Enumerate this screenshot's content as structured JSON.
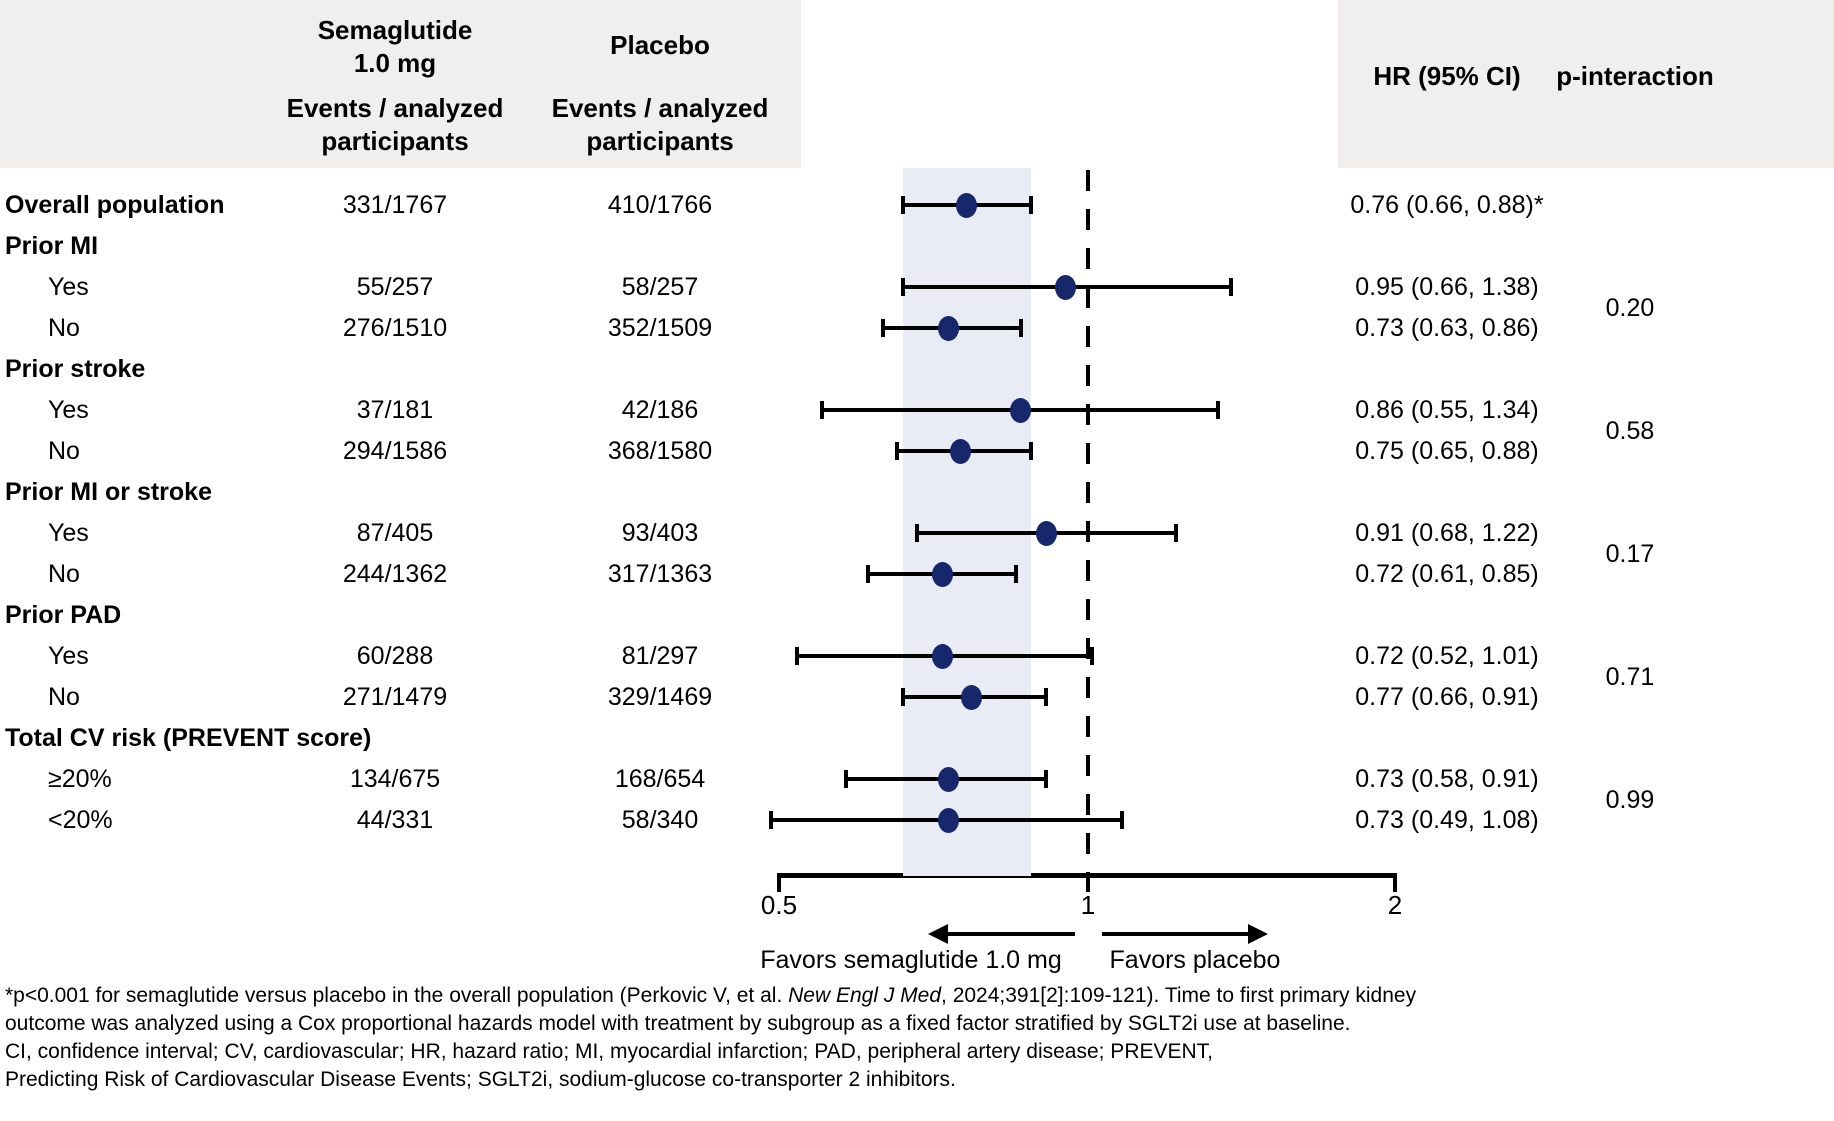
{
  "header": {
    "sema_line1": "Semaglutide",
    "sema_line2": "1.0 mg",
    "placebo": "Placebo",
    "events_line1": "Events / analyzed",
    "events_line2": "participants",
    "hr": "HR (95% CI)",
    "p": "p-interaction"
  },
  "axis": {
    "tick_labels": [
      "0.5",
      "1",
      "2"
    ],
    "favors_left": "Favors semaglutide 1.0 mg",
    "favors_right": "Favors placebo"
  },
  "footnote": {
    "line1_pre": "*p<0.001 for semaglutide versus placebo in the overall population (Perkovic V, et al. ",
    "line1_italic": "New Engl J Med",
    "line1_post": ", 2024;391[2]:109-121).  Time to first primary kidney",
    "line2": "outcome was analyzed using a Cox proportional hazards model with treatment by subgroup as a fixed factor stratified by SGLT2i use at baseline.",
    "line3": "CI, confidence interval; CV, cardiovascular; HR, hazard ratio; MI, myocardial infarction; PAD, peripheral artery disease; PREVENT,",
    "line4": "Predicting Risk of Cardiovascular Disease Events; SGLT2i, sodium-glucose co-transporter 2 inhibitors."
  },
  "colors": {
    "marker": "#17276c",
    "band": "#e9ecf4",
    "header_bg": "#f0efed",
    "line": "#000000"
  },
  "chart_data": {
    "type": "forest",
    "subtype": "hazard-ratio forest plot with 95% CI whiskers",
    "x_axis": {
      "scale": "log",
      "ticks": [
        0.5,
        1,
        2
      ],
      "range": [
        0.5,
        2
      ],
      "reference_line": 1.0
    },
    "shaded_band_ci": [
      0.66,
      0.88
    ],
    "legend": {
      "favors_left": "Favors semaglutide 1.0 mg",
      "favors_right": "Favors placebo"
    },
    "rows": [
      {
        "label": "Overall population",
        "style": "group",
        "sema": "331/1767",
        "placebo": "410/1766",
        "hr": 0.76,
        "lo": 0.66,
        "hi": 0.88,
        "hr_text": "0.76 (0.66, 0.88)*"
      },
      {
        "label": "Prior MI",
        "style": "group",
        "sema": null,
        "placebo": null,
        "hr": null,
        "lo": null,
        "hi": null,
        "hr_text": null
      },
      {
        "label": "Yes",
        "style": "sub",
        "sema": "55/257",
        "placebo": "58/257",
        "hr": 0.95,
        "lo": 0.66,
        "hi": 1.38,
        "hr_text": "0.95 (0.66, 1.38)"
      },
      {
        "label": "No",
        "style": "sub",
        "sema": "276/1510",
        "placebo": "352/1509",
        "hr": 0.73,
        "lo": 0.63,
        "hi": 0.86,
        "hr_text": "0.73 (0.63, 0.86)"
      },
      {
        "label": "Prior stroke",
        "style": "group",
        "sema": null,
        "placebo": null,
        "hr": null,
        "lo": null,
        "hi": null,
        "hr_text": null
      },
      {
        "label": "Yes",
        "style": "sub",
        "sema": "37/181",
        "placebo": "42/186",
        "hr": 0.86,
        "lo": 0.55,
        "hi": 1.34,
        "hr_text": "0.86 (0.55, 1.34)"
      },
      {
        "label": "No",
        "style": "sub",
        "sema": "294/1586",
        "placebo": "368/1580",
        "hr": 0.75,
        "lo": 0.65,
        "hi": 0.88,
        "hr_text": "0.75 (0.65, 0.88)"
      },
      {
        "label": "Prior MI or stroke",
        "style": "group",
        "sema": null,
        "placebo": null,
        "hr": null,
        "lo": null,
        "hi": null,
        "hr_text": null
      },
      {
        "label": "Yes",
        "style": "sub",
        "sema": "87/405",
        "placebo": "93/403",
        "hr": 0.91,
        "lo": 0.68,
        "hi": 1.22,
        "hr_text": "0.91 (0.68, 1.22)"
      },
      {
        "label": "No",
        "style": "sub",
        "sema": "244/1362",
        "placebo": "317/1363",
        "hr": 0.72,
        "lo": 0.61,
        "hi": 0.85,
        "hr_text": "0.72 (0.61, 0.85)"
      },
      {
        "label": "Prior PAD",
        "style": "group",
        "sema": null,
        "placebo": null,
        "hr": null,
        "lo": null,
        "hi": null,
        "hr_text": null
      },
      {
        "label": "Yes",
        "style": "sub",
        "sema": "60/288",
        "placebo": "81/297",
        "hr": 0.72,
        "lo": 0.52,
        "hi": 1.01,
        "hr_text": "0.72 (0.52, 1.01)"
      },
      {
        "label": "No",
        "style": "sub",
        "sema": "271/1479",
        "placebo": "329/1469",
        "hr": 0.77,
        "lo": 0.66,
        "hi": 0.91,
        "hr_text": "0.77 (0.66, 0.91)"
      },
      {
        "label": "Total CV risk (PREVENT score)",
        "style": "group",
        "sema": null,
        "placebo": null,
        "hr": null,
        "lo": null,
        "hi": null,
        "hr_text": null
      },
      {
        "label": "≥20%",
        "style": "sub",
        "sema": "134/675",
        "placebo": "168/654",
        "hr": 0.73,
        "lo": 0.58,
        "hi": 0.91,
        "hr_text": "0.73 (0.58, 0.91)"
      },
      {
        "label": "<20%",
        "style": "sub",
        "sema": "44/331",
        "placebo": "58/340",
        "hr": 0.73,
        "lo": 0.49,
        "hi": 1.08,
        "hr_text": "0.73 (0.49, 1.08)"
      }
    ],
    "p_interactions": [
      {
        "value": "0.20",
        "between_rows": [
          2,
          3
        ],
        "group": "Prior MI"
      },
      {
        "value": "0.58",
        "between_rows": [
          5,
          6
        ],
        "group": "Prior stroke"
      },
      {
        "value": "0.17",
        "between_rows": [
          8,
          9
        ],
        "group": "Prior MI or stroke"
      },
      {
        "value": "0.71",
        "between_rows": [
          11,
          12
        ],
        "group": "Prior PAD"
      },
      {
        "value": "0.99",
        "between_rows": [
          14,
          15
        ],
        "group": "Total CV risk (PREVENT score)"
      }
    ]
  }
}
